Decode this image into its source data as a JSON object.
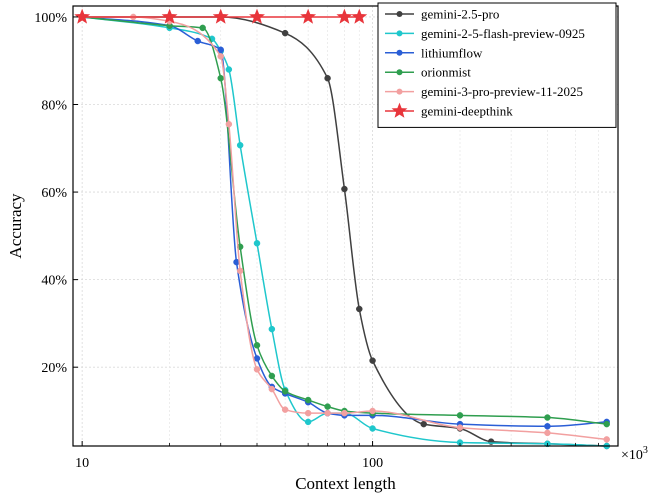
{
  "chart_data": {
    "type": "line",
    "xlabel": "Context length",
    "ylabel": "Accuracy",
    "x_scale": "log",
    "x_multiplier": "×10",
    "x_multiplier_exp": "3",
    "xlim": [
      9.3,
      700
    ],
    "ylim": [
      0.02,
      1.025
    ],
    "x_ticks": [
      {
        "value": 10,
        "label": "10"
      },
      {
        "value": 100,
        "label": "100"
      }
    ],
    "y_ticks": [
      {
        "value": 0.2,
        "label": "20%"
      },
      {
        "value": 0.4,
        "label": "40%"
      },
      {
        "value": 0.6,
        "label": "60%"
      },
      {
        "value": 0.8,
        "label": "80%"
      },
      {
        "value": 1.0,
        "label": "100%"
      }
    ],
    "grid": true,
    "legend_position": "top-right",
    "series": [
      {
        "name": "gemini-2.5-pro",
        "color": "#404040",
        "marker": "circle",
        "x": [
          10,
          20,
          30,
          50,
          70,
          80,
          90,
          100,
          150,
          200,
          256,
          400,
          640
        ],
        "y": [
          1.0,
          1.0,
          1.0,
          0.963,
          0.86,
          0.607,
          0.333,
          0.215,
          0.07,
          0.06,
          0.03,
          0.025,
          0.02
        ]
      },
      {
        "name": "gemini-2-5-flash-preview-0925",
        "color": "#1fc7cc",
        "marker": "circle",
        "x": [
          10,
          20,
          28,
          30,
          32,
          35,
          40,
          45,
          50,
          60,
          70,
          80,
          100,
          200,
          400,
          640
        ],
        "y": [
          1.0,
          0.975,
          0.95,
          0.922,
          0.88,
          0.707,
          0.483,
          0.287,
          0.148,
          0.075,
          0.095,
          0.095,
          0.06,
          0.028,
          0.025,
          0.02
        ]
      },
      {
        "name": "lithiumflow",
        "color": "#2a5ed6",
        "marker": "circle",
        "x": [
          10,
          20,
          25,
          30,
          34,
          40,
          45,
          50,
          60,
          70,
          80,
          100,
          200,
          400,
          640
        ],
        "y": [
          1.0,
          0.98,
          0.945,
          0.925,
          0.44,
          0.22,
          0.155,
          0.14,
          0.12,
          0.095,
          0.09,
          0.09,
          0.07,
          0.065,
          0.075
        ]
      },
      {
        "name": "orionmist",
        "color": "#2f9e4f",
        "marker": "circle",
        "x": [
          10,
          20,
          26,
          30,
          35,
          40,
          45,
          50,
          60,
          70,
          80,
          100,
          200,
          400,
          640
        ],
        "y": [
          1.0,
          0.98,
          0.975,
          0.86,
          0.475,
          0.25,
          0.18,
          0.145,
          0.125,
          0.11,
          0.1,
          0.095,
          0.09,
          0.085,
          0.07
        ]
      },
      {
        "name": "gemini-3-pro-preview-11-2025",
        "color": "#f2a0a0",
        "marker": "circle",
        "x": [
          10,
          15,
          20,
          30,
          32,
          35,
          40,
          45,
          50,
          60,
          70,
          80,
          100,
          200,
          400,
          640
        ],
        "y": [
          1.0,
          1.0,
          0.99,
          0.91,
          0.755,
          0.42,
          0.195,
          0.15,
          0.103,
          0.095,
          0.095,
          0.095,
          0.1,
          0.062,
          0.05,
          0.035
        ]
      },
      {
        "name": "gemini-deepthink",
        "color": "#e8353b",
        "marker": "star",
        "x": [
          10,
          20,
          30,
          40,
          60,
          80,
          90
        ],
        "y": [
          1.0,
          1.0,
          1.0,
          1.0,
          1.0,
          1.0,
          1.0
        ]
      }
    ]
  }
}
